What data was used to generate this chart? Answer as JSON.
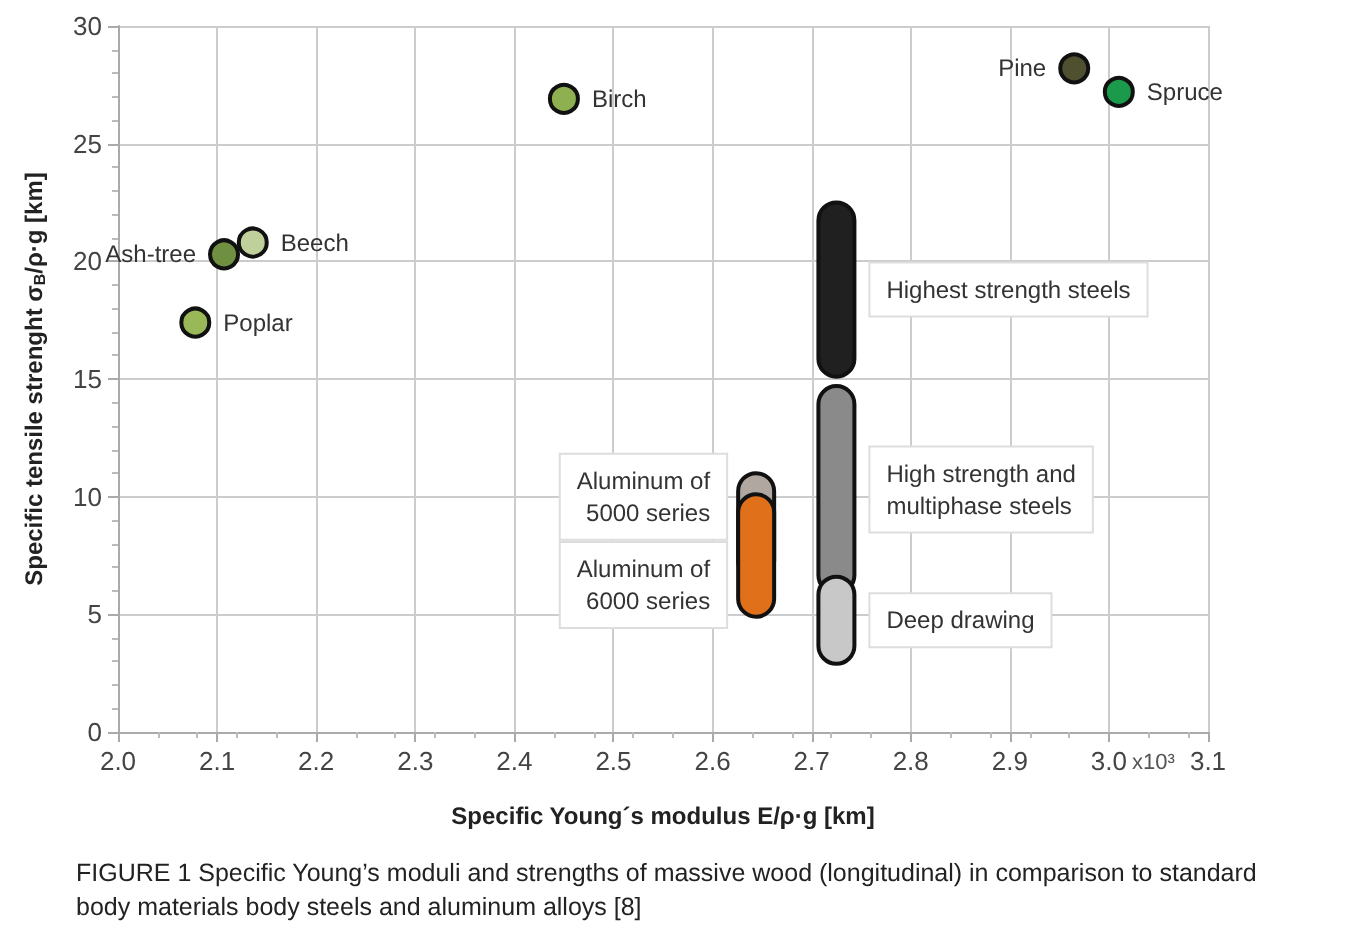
{
  "chart_data": {
    "type": "scatter",
    "xlabel": "Specific Young´s modulus E/ρ·g [km]",
    "ylabel": "Specific tensile strenght σ$_{B}$/ρ·g [km]",
    "xlim": [
      2.0,
      3.1
    ],
    "ylim": [
      0,
      30
    ],
    "xticks": [
      {
        "value": 2.0,
        "label": "2.0"
      },
      {
        "value": 2.1,
        "label": "2.1"
      },
      {
        "value": 2.2,
        "label": "2.2"
      },
      {
        "value": 2.3,
        "label": "2.3"
      },
      {
        "value": 2.4,
        "label": "2.4"
      },
      {
        "value": 2.5,
        "label": "2.5"
      },
      {
        "value": 2.6,
        "label": "2.6"
      },
      {
        "value": 2.7,
        "label": "2.7"
      },
      {
        "value": 2.8,
        "label": "2.8"
      },
      {
        "value": 2.9,
        "label": "2.9"
      },
      {
        "value": 3.0,
        "label": "3.0"
      },
      {
        "value": 3.1,
        "label": "3.1"
      }
    ],
    "yticks": [
      0,
      5,
      10,
      15,
      20,
      25,
      30
    ],
    "grid": true,
    "legend": false,
    "marker": "circle",
    "series": [
      {
        "name": "Pine",
        "color": "#4f5030",
        "x": [
          2.965
        ],
        "values": [
          28.2
        ]
      },
      {
        "name": "Spruce",
        "color": "#1a9a4a",
        "x": [
          3.01
        ],
        "values": [
          27.2
        ]
      },
      {
        "name": "Birch",
        "color": "#8fb050",
        "x": [
          2.45
        ],
        "values": [
          26.9
        ]
      },
      {
        "name": "Beech",
        "color": "#c0d09a",
        "x": [
          2.136
        ],
        "values": [
          20.8
        ]
      },
      {
        "name": "Ash-tree",
        "color": "#6f9040",
        "x": [
          2.107
        ],
        "values": [
          20.3
        ]
      },
      {
        "name": "Poplar",
        "color": "#9ab858",
        "x": [
          2.078
        ],
        "values": [
          17.4
        ]
      },
      {
        "name": "Highest strength steels",
        "type": "bar",
        "color": "#202020",
        "x": [
          2.725
        ],
        "base": [
          15.1
        ],
        "values": [
          7.4
        ]
      },
      {
        "name": "High strength and\nmultiphase steels",
        "type": "bar",
        "color": "#8a8a8a",
        "x": [
          2.725
        ],
        "base": [
          5.9
        ],
        "values": [
          8.8
        ]
      },
      {
        "name": "Deep drawing",
        "type": "bar",
        "color": "#c8c8c8",
        "x": [
          2.725
        ],
        "base": [
          2.9
        ],
        "values": [
          3.7
        ]
      },
      {
        "name": "Aluminum of\n5000 series",
        "type": "bar",
        "color": "#b0a8a0",
        "x": [
          2.644
        ],
        "base": [
          6.5
        ],
        "values": [
          4.5
        ]
      },
      {
        "name": "Aluminum of\n6000 series",
        "type": "bar",
        "color": "#e0701a",
        "x": [
          2.644
        ],
        "base": [
          4.9
        ],
        "values": [
          5.2
        ]
      }
    ],
    "annotations": [
      "x10³",
      "FIGURE 1 Specific Young’s moduli and strengths of massive wood (longitudinal) in comparison to standard body materials body steels and aluminum alloys [8]"
    ]
  }
}
